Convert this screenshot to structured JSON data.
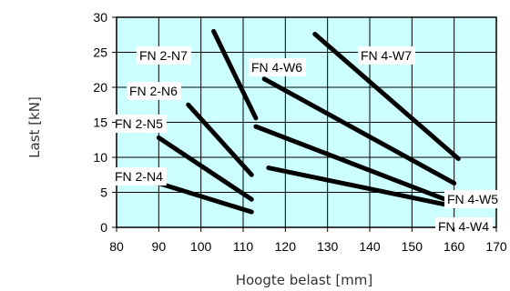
{
  "chart_data": {
    "type": "line",
    "xlabel": "Hoogte belast [mm]",
    "ylabel": "Last [kN]",
    "xlim": [
      80,
      170
    ],
    "ylim": [
      0,
      30
    ],
    "xticks": [
      "80",
      "90",
      "100",
      "110",
      "120",
      "130",
      "140",
      "150",
      "160",
      "170"
    ],
    "yticks": [
      "0",
      "5",
      "10",
      "15",
      "20",
      "25",
      "30"
    ],
    "grid": true,
    "colors": {
      "plot_background": "#ccffff",
      "grid": "#000000",
      "line": "#000000",
      "label_background": "#ffffff"
    },
    "series": [
      {
        "name": "FN 2-N4",
        "points": [
          [
            90,
            6.3
          ],
          [
            112,
            2.2
          ]
        ]
      },
      {
        "name": "FN 2-N5",
        "points": [
          [
            90,
            12.8
          ],
          [
            112,
            4.0
          ]
        ]
      },
      {
        "name": "FN 2-N6",
        "points": [
          [
            97,
            17.5
          ],
          [
            112,
            7.5
          ]
        ]
      },
      {
        "name": "FN 2-N7",
        "points": [
          [
            103,
            28.0
          ],
          [
            113,
            15.6
          ]
        ]
      },
      {
        "name": "FN 4-W6",
        "points": [
          [
            115,
            21.2
          ],
          [
            160,
            6.3
          ]
        ]
      },
      {
        "name": "FN 4-W7",
        "points": [
          [
            127,
            27.6
          ],
          [
            161,
            9.8
          ]
        ]
      },
      {
        "name": "FN 4-W5",
        "points": [
          [
            113,
            14.4
          ],
          [
            160,
            3.5
          ]
        ]
      },
      {
        "name": "FN 4-W4",
        "points": [
          [
            116,
            8.5
          ],
          [
            160,
            3.0
          ]
        ]
      }
    ]
  }
}
